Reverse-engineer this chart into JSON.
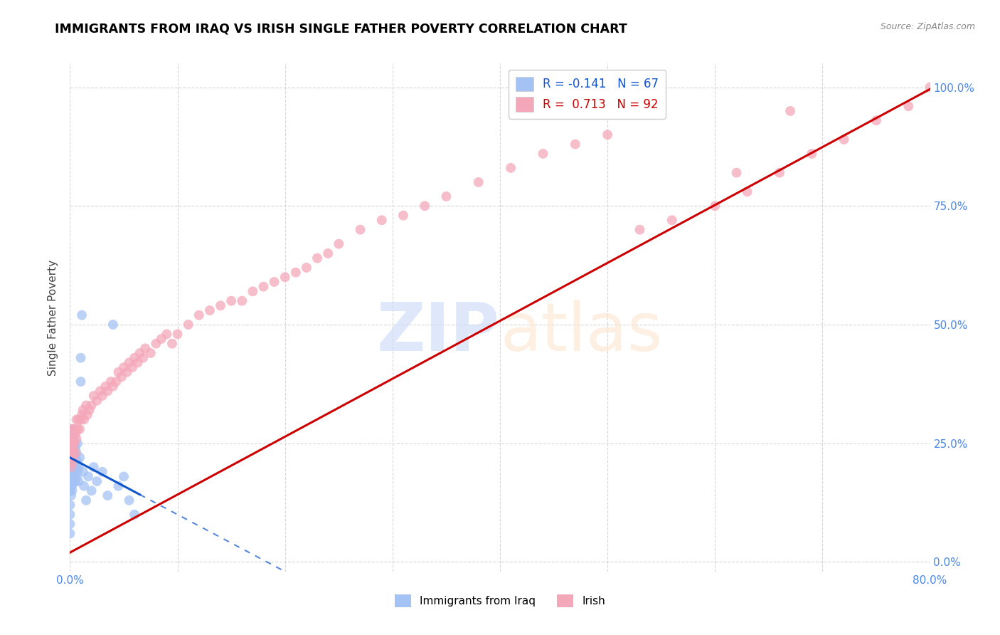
{
  "title": "IMMIGRANTS FROM IRAQ VS IRISH SINGLE FATHER POVERTY CORRELATION CHART",
  "source": "Source: ZipAtlas.com",
  "ylabel": "Single Father Poverty",
  "legend_bottom_label1": "Immigrants from Iraq",
  "legend_bottom_label2": "Irish",
  "blue_color": "#a4c2f4",
  "pink_color": "#f4a7b9",
  "blue_line_color": "#1155cc",
  "pink_line_color": "#cc0000",
  "watermark_zip_color": "#c9daf8",
  "watermark_atlas_color": "#fce5cd",
  "background_color": "#ffffff",
  "grid_color": "#cccccc",
  "title_color": "#000000",
  "axis_label_color": "#4a86e8",
  "xlim": [
    0.0,
    0.8
  ],
  "ylim": [
    -0.02,
    1.05
  ],
  "iraq_R": -0.141,
  "iraq_N": 67,
  "irish_R": 0.713,
  "irish_N": 92,
  "iraq_scatter_x": [
    0.0,
    0.0,
    0.0,
    0.0,
    0.0,
    0.001,
    0.001,
    0.001,
    0.001,
    0.001,
    0.001,
    0.001,
    0.001,
    0.001,
    0.001,
    0.002,
    0.002,
    0.002,
    0.002,
    0.002,
    0.002,
    0.002,
    0.002,
    0.002,
    0.002,
    0.003,
    0.003,
    0.003,
    0.003,
    0.003,
    0.003,
    0.003,
    0.004,
    0.004,
    0.004,
    0.004,
    0.004,
    0.005,
    0.005,
    0.005,
    0.005,
    0.006,
    0.006,
    0.006,
    0.007,
    0.007,
    0.007,
    0.008,
    0.008,
    0.009,
    0.01,
    0.01,
    0.011,
    0.012,
    0.013,
    0.015,
    0.017,
    0.02,
    0.022,
    0.025,
    0.03,
    0.035,
    0.04,
    0.045,
    0.05,
    0.055,
    0.06
  ],
  "iraq_scatter_y": [
    0.1,
    0.08,
    0.12,
    0.06,
    0.15,
    0.18,
    0.2,
    0.22,
    0.25,
    0.17,
    0.14,
    0.23,
    0.19,
    0.16,
    0.21,
    0.2,
    0.18,
    0.24,
    0.22,
    0.16,
    0.28,
    0.15,
    0.19,
    0.21,
    0.25,
    0.22,
    0.19,
    0.24,
    0.2,
    0.17,
    0.23,
    0.27,
    0.21,
    0.18,
    0.23,
    0.25,
    0.2,
    0.22,
    0.19,
    0.24,
    0.17,
    0.23,
    0.2,
    0.18,
    0.21,
    0.19,
    0.25,
    0.2,
    0.17,
    0.22,
    0.43,
    0.38,
    0.52,
    0.19,
    0.16,
    0.13,
    0.18,
    0.15,
    0.2,
    0.17,
    0.19,
    0.14,
    0.5,
    0.16,
    0.18,
    0.13,
    0.1
  ],
  "irish_scatter_x": [
    0.0,
    0.001,
    0.001,
    0.001,
    0.001,
    0.002,
    0.002,
    0.002,
    0.002,
    0.003,
    0.003,
    0.003,
    0.004,
    0.004,
    0.005,
    0.005,
    0.006,
    0.006,
    0.007,
    0.008,
    0.009,
    0.01,
    0.011,
    0.012,
    0.013,
    0.015,
    0.016,
    0.018,
    0.02,
    0.022,
    0.025,
    0.028,
    0.03,
    0.033,
    0.035,
    0.038,
    0.04,
    0.043,
    0.045,
    0.048,
    0.05,
    0.053,
    0.055,
    0.058,
    0.06,
    0.063,
    0.065,
    0.068,
    0.07,
    0.075,
    0.08,
    0.085,
    0.09,
    0.095,
    0.1,
    0.11,
    0.12,
    0.13,
    0.14,
    0.15,
    0.16,
    0.17,
    0.18,
    0.19,
    0.2,
    0.21,
    0.22,
    0.23,
    0.24,
    0.25,
    0.27,
    0.29,
    0.31,
    0.33,
    0.35,
    0.38,
    0.41,
    0.44,
    0.47,
    0.5,
    0.53,
    0.56,
    0.6,
    0.63,
    0.66,
    0.69,
    0.72,
    0.75,
    0.78,
    0.8,
    0.62,
    0.67
  ],
  "irish_scatter_y": [
    0.22,
    0.2,
    0.24,
    0.22,
    0.26,
    0.23,
    0.25,
    0.21,
    0.28,
    0.24,
    0.26,
    0.22,
    0.28,
    0.25,
    0.27,
    0.23,
    0.3,
    0.26,
    0.28,
    0.3,
    0.28,
    0.3,
    0.31,
    0.32,
    0.3,
    0.33,
    0.31,
    0.32,
    0.33,
    0.35,
    0.34,
    0.36,
    0.35,
    0.37,
    0.36,
    0.38,
    0.37,
    0.38,
    0.4,
    0.39,
    0.41,
    0.4,
    0.42,
    0.41,
    0.43,
    0.42,
    0.44,
    0.43,
    0.45,
    0.44,
    0.46,
    0.47,
    0.48,
    0.46,
    0.48,
    0.5,
    0.52,
    0.53,
    0.54,
    0.55,
    0.55,
    0.57,
    0.58,
    0.59,
    0.6,
    0.61,
    0.62,
    0.64,
    0.65,
    0.67,
    0.7,
    0.72,
    0.73,
    0.75,
    0.77,
    0.8,
    0.83,
    0.86,
    0.88,
    0.9,
    0.7,
    0.72,
    0.75,
    0.78,
    0.82,
    0.86,
    0.89,
    0.93,
    0.96,
    1.0,
    0.82,
    0.95
  ],
  "iraq_line_solid_end": 0.065,
  "iraq_line_dash_end": 0.5,
  "irish_line_start": 0.0,
  "irish_line_end": 0.8
}
